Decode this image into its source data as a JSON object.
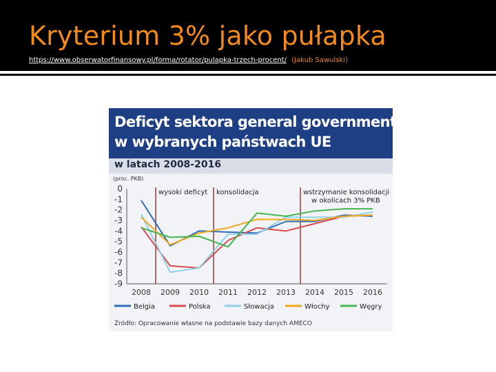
{
  "slide": {
    "title": "Kryterium 3% jako pułapka",
    "source_url": "https://www.obserwatorfinansowy.pl/forma/rotator/pulapka-trzech-procent/",
    "source_author": "(Jakub Sawulski)"
  },
  "chart_data": {
    "type": "line",
    "title": "Deficyt sektora general government w wybranych państwach UE",
    "title_lines": [
      "Deficyt sektora general government",
      "w wybranych państwach UE"
    ],
    "subtitle": "w latach 2008-2016",
    "unit": "(proc. PKB)",
    "x": [
      "2008",
      "2009",
      "2010",
      "2011",
      "2012",
      "2013",
      "2014",
      "2015",
      "2016"
    ],
    "ylim": [
      -9,
      0
    ],
    "yticks": [
      "0",
      "-1",
      "-2",
      "-3",
      "-4",
      "-5",
      "-6",
      "-7",
      "-8",
      "-9"
    ],
    "grid": false,
    "legend_position": "bottom",
    "phases": [
      "wysoki deficyt",
      "konsolidacja",
      "wstrzymanie konsolidacji",
      "w okolicach 3% PKB"
    ],
    "series": [
      {
        "name": "Belgia",
        "color": "#2e6db5",
        "values": [
          -1.1,
          -5.4,
          -4.0,
          -4.1,
          -4.2,
          -3.1,
          -3.1,
          -2.5,
          -2.6
        ]
      },
      {
        "name": "Polska",
        "color": "#d94a4f",
        "values": [
          -3.6,
          -7.3,
          -7.5,
          -4.9,
          -3.7,
          -4.0,
          -3.3,
          -2.6,
          -2.5
        ]
      },
      {
        "name": "Słowacja",
        "color": "#8fd0e8",
        "values": [
          -2.4,
          -7.9,
          -7.5,
          -4.3,
          -4.3,
          -2.7,
          -2.7,
          -2.7,
          -2.2
        ]
      },
      {
        "name": "Włochy",
        "color": "#f2a81d",
        "values": [
          -2.7,
          -5.3,
          -4.2,
          -3.7,
          -2.9,
          -2.9,
          -3.0,
          -2.6,
          -2.5
        ]
      },
      {
        "name": "Węgry",
        "color": "#45b54f",
        "values": [
          -3.7,
          -4.6,
          -4.5,
          -5.5,
          -2.3,
          -2.6,
          -2.1,
          -1.9,
          -1.9
        ]
      }
    ],
    "source_note": "Źródło: Opracowanie własne na podstawie bazy danych AMECO"
  }
}
